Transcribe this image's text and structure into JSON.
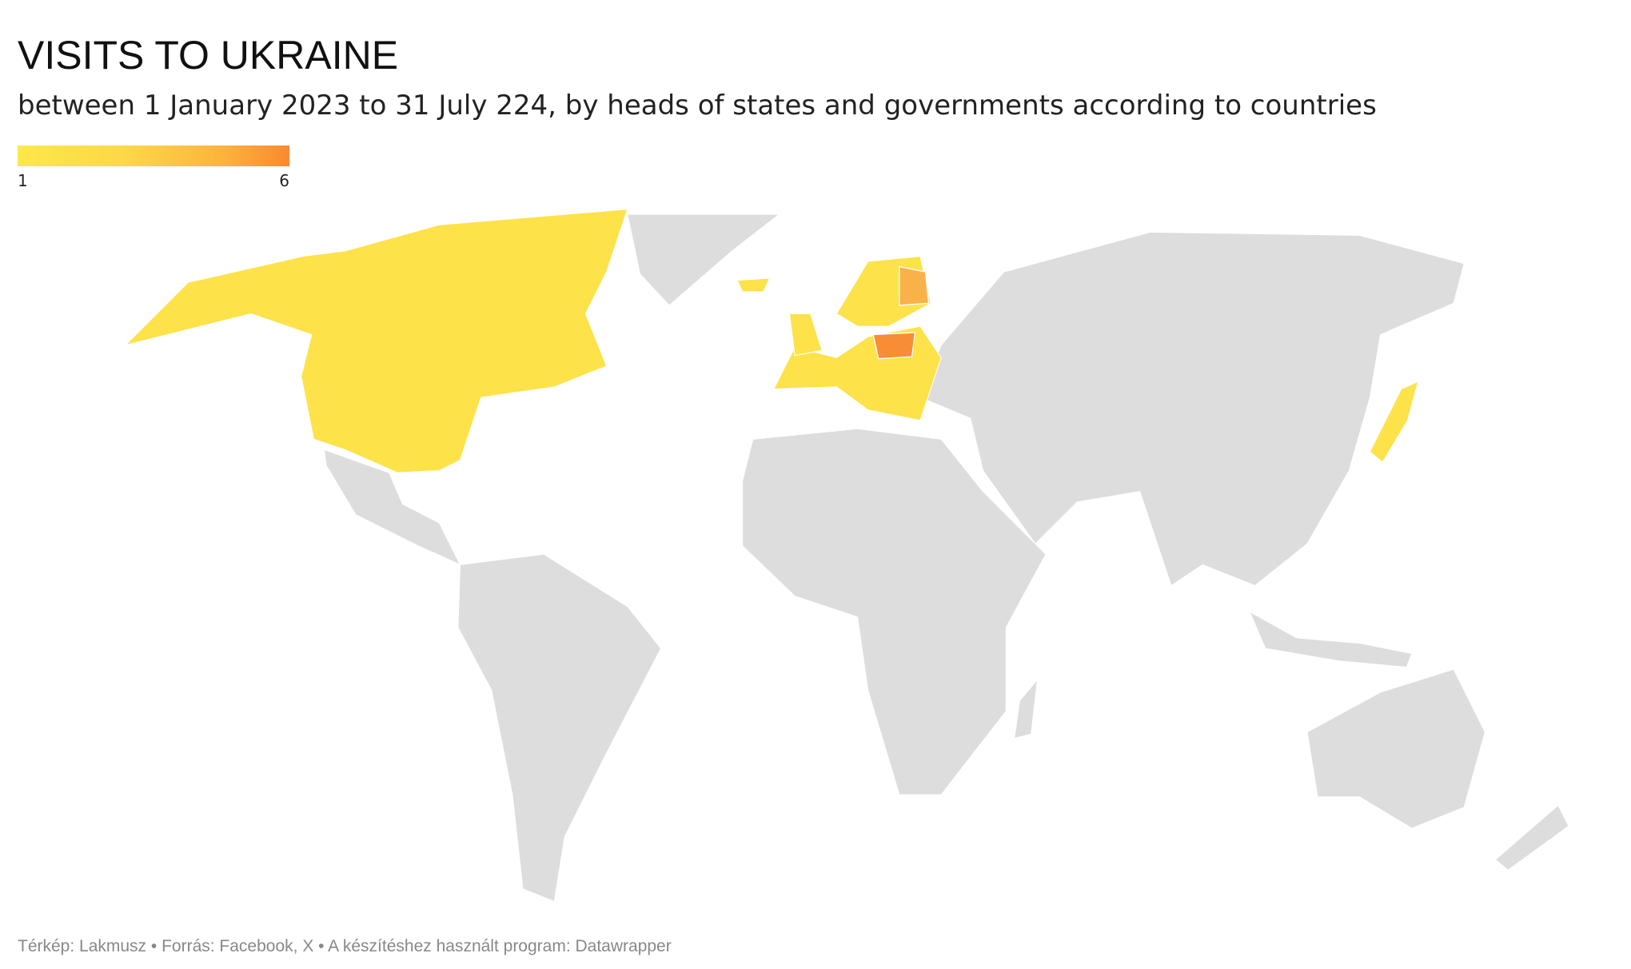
{
  "header": {
    "title": "VISITS TO UKRAINE",
    "subtitle": "between 1 January 2023 to 31 July 224, by heads of states and governments according to countries"
  },
  "legend": {
    "min": 1,
    "max": 6
  },
  "footer": "Térkép: Lakmusz • Forrás: Facebook, X • A készítéshez használt program: Datawrapper"
}
